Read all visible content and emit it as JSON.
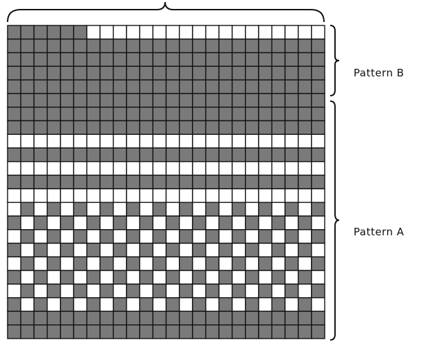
{
  "colors": {
    "filled": "#7a7a7a",
    "empty": "#ffffff",
    "gridline": "#111111",
    "bracket": "#111111"
  },
  "grid": {
    "cols": 24,
    "rows": 23,
    "cells": [
      "111111000000000000000000",
      "111111111111111111111111",
      "111111111111111111111111",
      "111111111111111111111111",
      "111111111111111111111111",
      "111111111111111111111111",
      "111111111111111111111111",
      "111111111111111111111111",
      "000000000000000000000000",
      "111111111111111111111111",
      "000000000000000000000000",
      "111111111111111111111111",
      "000000000000000000000000",
      "010101010101010101010101",
      "101010101010101010101010",
      "010101010101010101010101",
      "101010101010101010101010",
      "010101010101010101010101",
      "101010101010101010101010",
      "010101010101010101010101",
      "101010101010101010101010",
      "111111111111111111111111",
      "111111111111111111111111"
    ]
  },
  "labels": {
    "pattern_b": "Pattern B",
    "pattern_a": "Pattern A"
  }
}
